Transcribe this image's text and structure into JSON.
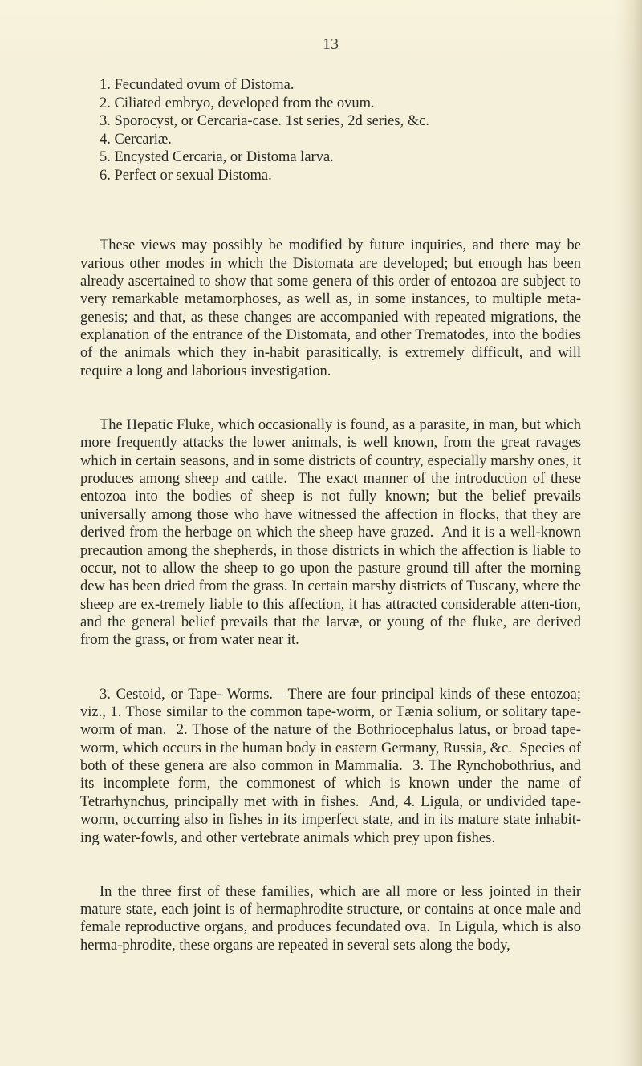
{
  "page": {
    "number": "13",
    "background_color": "#f5f0da",
    "text_color": "#2a2a26",
    "font_family": "Georgia, 'Times New Roman', serif",
    "body_fontsize_pt": 14,
    "line_height": 1.21
  },
  "list": {
    "items": [
      "1. Fecundated ovum of Distoma.",
      "2. Ciliated embryo, developed from the ovum.",
      "3. Sporocyst, or Cercaria-case.  1st series, 2d series, &c.",
      "4. Cercariæ.",
      "5. Encysted Cercaria, or Distoma larva.",
      "6. Perfect or sexual Distoma."
    ]
  },
  "body": {
    "p1": "These views may possibly be modified by future inquiries, and there may be various other modes in which the Distomata are developed; but enough has been already ascertained to show that some genera of this order of entozoa are subject to very remarkable metamorphoses, as well as, in some instances, to multiple meta-genesis; and that, as these changes are accompanied with repeated migrations, the explanation of the entrance of the Distomata, and other Trematodes, into the bodies of the animals which they in-habit parasitically, is extremely difficult, and will require a long and laborious investigation.",
    "p2": "The Hepatic Fluke, which occasionally is found, as a parasite, in man, but which more frequently attacks the lower animals, is well known, from the great ravages which in certain seasons, and in some districts of country, especially marshy ones, it produces among sheep and cattle.  The exact manner of the introduction of these entozoa into the bodies of sheep is not fully known; but the belief prevails universally among those who have witnessed the affection in flocks, that they are derived from the herbage on which the sheep have grazed.  And it is a well-known precaution among the shepherds, in those districts in which the affection is liable to occur, not to allow the sheep to go upon the pasture ground till after the morning dew has been dried from the grass. In certain marshy districts of Tuscany, where the sheep are ex-tremely liable to this affection, it has attracted considerable atten-tion, and the general belief prevails that the larvæ, or young of the fluke, are derived from the grass, or from water near it.",
    "p3": "3. Cestoid, or Tape- Worms.—There are four principal kinds of these entozoa; viz., 1. Those similar to the common tape-worm, or Tænia solium, or solitary tape-worm of man.  2. Those of the nature of the Bothriocephalus latus, or broad tape-worm, which occurs in the human body in eastern Germany, Russia, &c.  Species of both of these genera are also common in Mammalia.  3. The Rynchobothrius, and its incomplete form, the commonest of which is known under the name of Tetrarhynchus, principally met with in fishes.  And, 4. Ligula, or undivided tape-worm, occurring also in fishes in its imperfect state, and in its mature state inhabit-ing water-fowls, and other vertebrate animals which prey upon fishes.",
    "p4": "In the three first of these families, which are all more or less jointed in their mature state, each joint is of hermaphrodite structure, or contains at once male and female reproductive organs, and produces fecundated ova.  In Ligula, which is also herma-phrodite, these organs are repeated in several sets along the body,"
  }
}
